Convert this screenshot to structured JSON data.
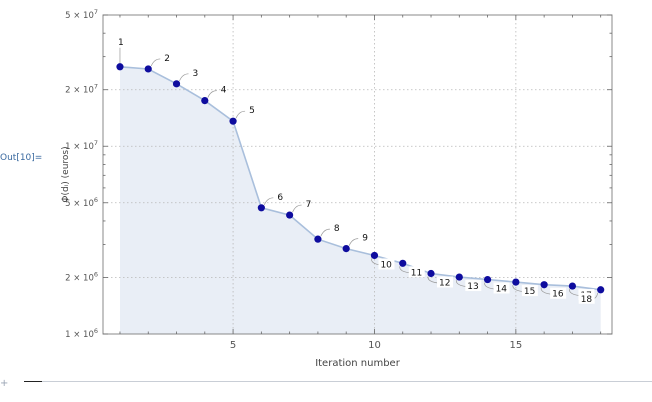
{
  "cell": {
    "out_label": "Out[10]="
  },
  "chart_data": {
    "type": "line",
    "scale": "log-y",
    "filled": true,
    "ylabel": "Φ(dᵢ) (euros)",
    "xlabel": "Iteration number",
    "xlim": [
      0.4,
      18.4
    ],
    "ylim": [
      1000000,
      50000000
    ],
    "x_ticks": [
      5,
      10,
      15
    ],
    "y_ticks": [
      {
        "value": 1000000,
        "mantissa": "1",
        "exp": "6"
      },
      {
        "value": 2000000,
        "mantissa": "2",
        "exp": "6"
      },
      {
        "value": 5000000,
        "mantissa": "5",
        "exp": "6"
      },
      {
        "value": 10000000,
        "mantissa": "1",
        "exp": "7"
      },
      {
        "value": 20000000,
        "mantissa": "2",
        "exp": "7"
      },
      {
        "value": 50000000,
        "mantissa": "5",
        "exp": "7"
      }
    ],
    "grid": true,
    "x": [
      1,
      2,
      3,
      4,
      5,
      6,
      7,
      8,
      9,
      10,
      11,
      12,
      13,
      14,
      15,
      16,
      17,
      18
    ],
    "values": [
      26500000,
      25800000,
      21500000,
      17500000,
      13600000,
      4700000,
      4300000,
      3200000,
      2850000,
      2620000,
      2380000,
      2100000,
      2010000,
      1950000,
      1890000,
      1830000,
      1800000,
      1720000
    ],
    "point_labels": [
      "1",
      "2",
      "3",
      "4",
      "5",
      "6",
      "7",
      "8",
      "9",
      "10",
      "11",
      "12",
      "13",
      "14",
      "15",
      "16",
      "17",
      "18"
    ],
    "colors": {
      "line": "#a9bfdc",
      "fill": "#e9eef6",
      "point": "#0e0c9e",
      "grid": "#b8b8b8",
      "frame": "#888888"
    }
  }
}
